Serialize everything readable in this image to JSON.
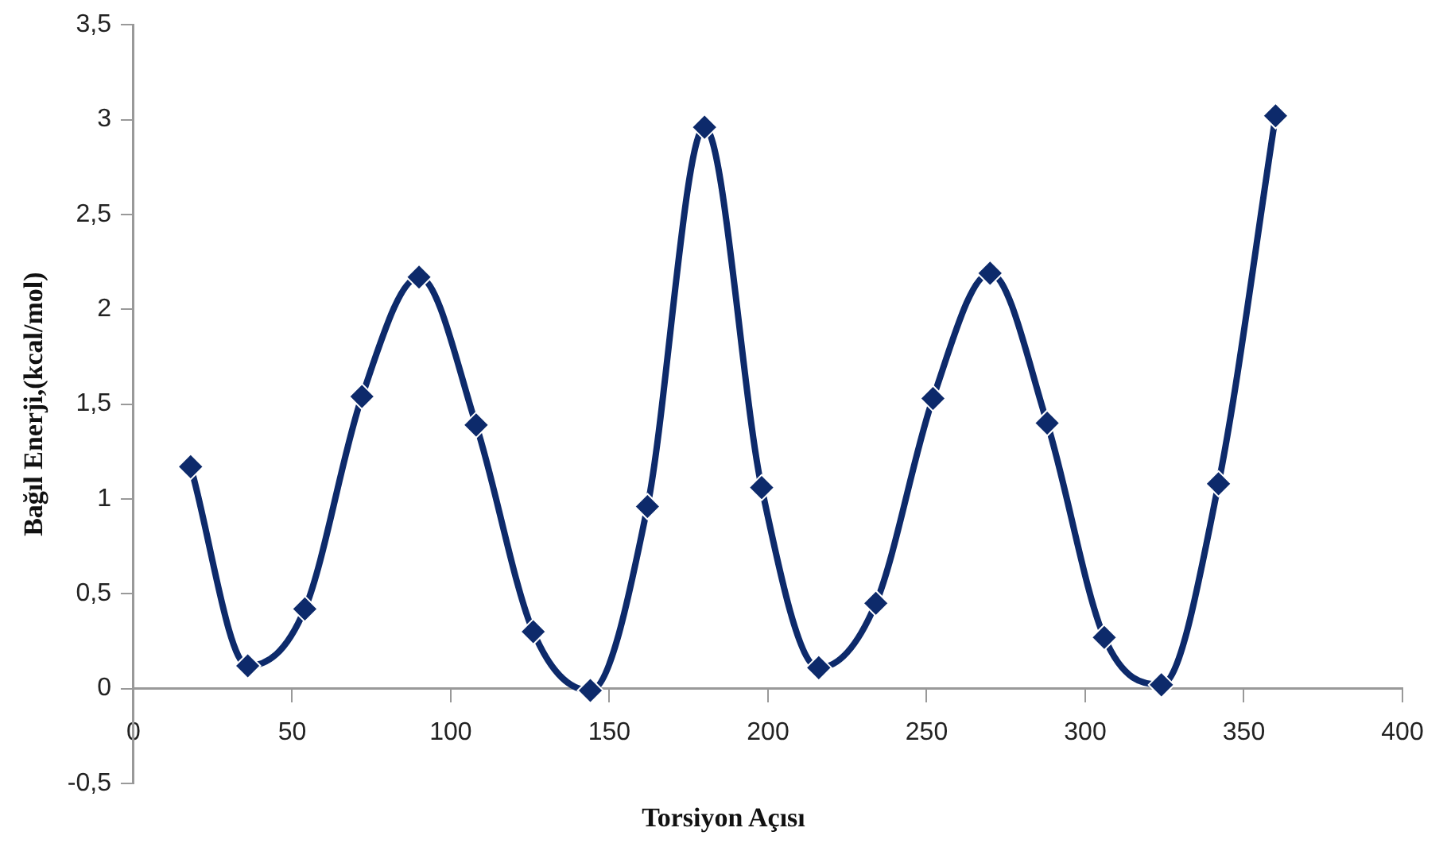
{
  "chart_data": {
    "type": "line",
    "xlabel": "Torsiyon Açısı",
    "ylabel": "Bağıl Enerji,(kcal/mol)",
    "x": [
      18,
      36,
      54,
      72,
      90,
      108,
      126,
      144,
      162,
      180,
      198,
      216,
      234,
      252,
      270,
      288,
      306,
      324,
      342,
      360
    ],
    "series": [
      {
        "color": "#0d2a6b",
        "values": [
          1.17,
          0.12,
          0.42,
          1.54,
          2.17,
          1.39,
          0.3,
          -0.01,
          0.96,
          2.96,
          1.06,
          0.11,
          0.45,
          1.53,
          2.19,
          1.4,
          0.27,
          0.02,
          1.08,
          3.02
        ]
      }
    ],
    "xlim": [
      0,
      400
    ],
    "xticks": [
      0,
      50,
      100,
      150,
      200,
      250,
      300,
      350,
      400
    ],
    "ylim": [
      -0.5,
      3.5
    ],
    "yticks": [
      {
        "value": -0.5,
        "label": "-0,5"
      },
      0,
      {
        "value": 0.5,
        "label": "0,5"
      },
      1,
      {
        "value": 1.5,
        "label": "1,5"
      },
      2,
      {
        "value": 2.5,
        "label": "2,5"
      },
      3,
      {
        "value": 3.5,
        "label": "3,5"
      }
    ],
    "marker": "diamond",
    "legend": false
  }
}
